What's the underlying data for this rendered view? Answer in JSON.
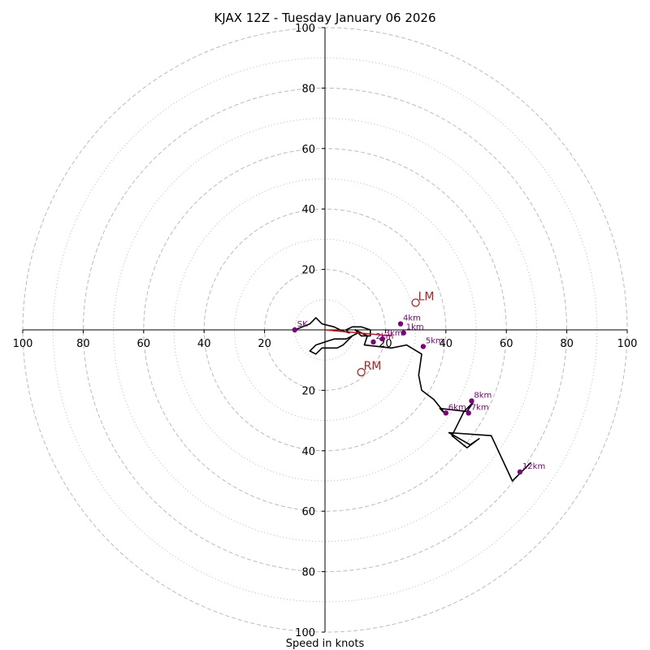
{
  "chart_data": {
    "type": "hodograph",
    "title": "KJAX 12Z - Tuesday January 06 2026",
    "xlabel": "Speed in knots",
    "range": [
      -100,
      100
    ],
    "ring_values": [
      20,
      40,
      60,
      80,
      100
    ],
    "minor_ring_values": [
      10,
      30,
      50,
      70,
      90
    ],
    "tick_values": [
      20,
      40,
      60,
      80,
      100
    ],
    "tick_labels": {
      "left": [
        "20",
        "40",
        "60",
        "80",
        "100"
      ],
      "right": [
        "20",
        "40",
        "60",
        "80",
        "100"
      ],
      "top": [
        "20",
        "40",
        "60",
        "80",
        "100"
      ],
      "bottom": [
        "20",
        "40",
        "60",
        "80",
        "100"
      ]
    },
    "trace": [
      [
        -10,
        0
      ],
      [
        -5,
        2
      ],
      [
        -3,
        4
      ],
      [
        -1,
        2
      ],
      [
        3,
        1
      ],
      [
        5,
        0
      ],
      [
        8,
        -1
      ],
      [
        7,
        0
      ],
      [
        9,
        1
      ],
      [
        12,
        1
      ],
      [
        15,
        0
      ],
      [
        15,
        -2
      ],
      [
        12,
        -2
      ],
      [
        10,
        0
      ],
      [
        14,
        -2
      ],
      [
        13,
        -5
      ],
      [
        22,
        -6
      ],
      [
        27,
        -5
      ],
      [
        32,
        -8
      ],
      [
        31,
        -15
      ],
      [
        32,
        -20
      ],
      [
        36,
        -23
      ],
      [
        40,
        -28
      ],
      [
        38,
        -26
      ],
      [
        47,
        -27
      ],
      [
        49,
        -24
      ],
      [
        46,
        -27
      ],
      [
        44,
        -31
      ],
      [
        42,
        -35
      ],
      [
        47,
        -39
      ],
      [
        51,
        -36
      ],
      [
        48,
        -38
      ],
      [
        41,
        -34
      ],
      [
        55,
        -35
      ],
      [
        62,
        -50
      ],
      [
        68,
        -44
      ],
      [
        65,
        -47
      ]
    ],
    "trace_tail": [
      [
        11,
        -1
      ],
      [
        7,
        -3
      ],
      [
        3,
        -3
      ],
      [
        0,
        -4
      ],
      [
        -3,
        -5
      ],
      [
        -5,
        -7
      ],
      [
        -3,
        -8
      ],
      [
        -1,
        -6
      ],
      [
        1,
        -6
      ],
      [
        4,
        -6
      ],
      [
        6,
        -5
      ],
      [
        8,
        -3
      ],
      [
        9,
        -2
      ],
      [
        11,
        -1
      ]
    ],
    "height_markers": [
      {
        "label": "SK",
        "u": -10,
        "v": 0
      },
      {
        "label": "4km",
        "u": 25,
        "v": 2
      },
      {
        "label": "1km",
        "u": 26,
        "v": -1
      },
      {
        "label": "3km",
        "u": 19,
        "v": -3
      },
      {
        "label": "2km",
        "u": 16,
        "v": -4
      },
      {
        "label": "5km",
        "u": 32.5,
        "v": -5.5
      },
      {
        "label": "8km",
        "u": 48.5,
        "v": -23.5
      },
      {
        "label": "6km",
        "u": 40,
        "v": -27.5
      },
      {
        "label": "7km",
        "u": 47.5,
        "v": -27.5
      },
      {
        "label": "12km",
        "u": 64.5,
        "v": -47
      }
    ],
    "storm_motion": [
      {
        "label": "LM",
        "u": 30,
        "v": 9
      },
      {
        "label": "RM",
        "u": 12,
        "v": -14
      }
    ],
    "shear_vector": {
      "from": [
        0,
        0
      ],
      "to": [
        22,
        -2
      ]
    },
    "colors": {
      "trace": "#000000",
      "marker": "#800080",
      "motion": "#b22222",
      "shear": "#e00000",
      "ring": "#bbbbbb",
      "axis": "#000000"
    }
  }
}
